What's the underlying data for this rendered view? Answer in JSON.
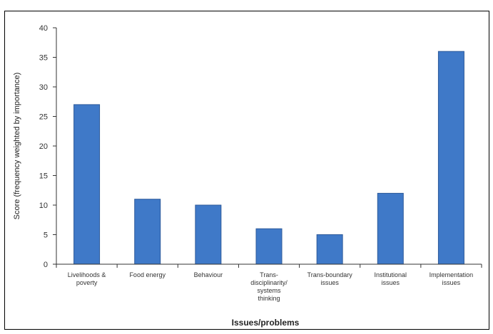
{
  "colors": {
    "bar": "#3f79c8",
    "bar_stroke": "#2d5a9a",
    "axis": "#333333"
  },
  "chart_data": {
    "type": "bar",
    "categories": [
      [
        "Livelihoods &",
        "poverty"
      ],
      [
        "Food energy"
      ],
      [
        "Behaviour"
      ],
      [
        "Trans-",
        "disciplinarity/",
        "systems",
        "thinking"
      ],
      [
        "Trans-boundary",
        "issues"
      ],
      [
        "Institutional",
        "issues"
      ],
      [
        "Implementation",
        "issues"
      ]
    ],
    "values": [
      27,
      11,
      10,
      6,
      5,
      12,
      36
    ],
    "ylim": [
      0,
      40
    ],
    "yticks": [
      0,
      5,
      10,
      15,
      20,
      25,
      30,
      35,
      40
    ],
    "xlabel": "Issues/problems",
    "ylabel": "Score (frequency weighted by importance)",
    "title": "",
    "grid": false
  }
}
